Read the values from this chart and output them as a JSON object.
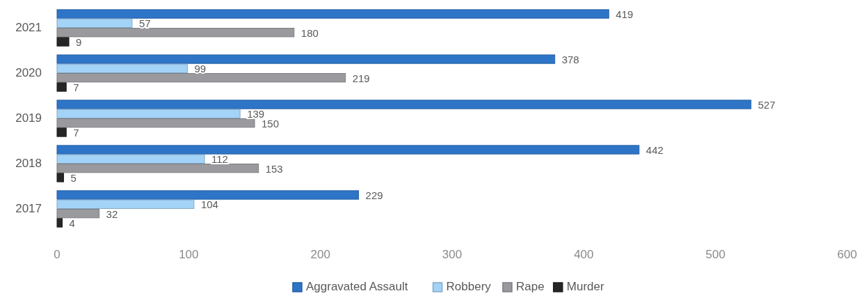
{
  "chart_data": {
    "type": "bar",
    "orientation": "horizontal",
    "categories": [
      "2021",
      "2020",
      "2019",
      "2018",
      "2017"
    ],
    "series": [
      {
        "name": "Aggravated Assault",
        "color": "#2e75c8",
        "values": [
          419,
          378,
          527,
          442,
          229
        ]
      },
      {
        "name": "Robbery",
        "color": "#a3d3f7",
        "values": [
          57,
          99,
          139,
          112,
          104
        ]
      },
      {
        "name": "Rape",
        "color": "#9a9a9e",
        "values": [
          180,
          219,
          150,
          153,
          32
        ]
      },
      {
        "name": "Murder",
        "color": "#262626",
        "values": [
          9,
          7,
          7,
          5,
          4
        ]
      }
    ],
    "xlim": [
      0,
      600
    ],
    "xticks": [
      0,
      100,
      200,
      300,
      400,
      500,
      600
    ],
    "data_labels": true,
    "legend": "bottom",
    "grid": false
  }
}
